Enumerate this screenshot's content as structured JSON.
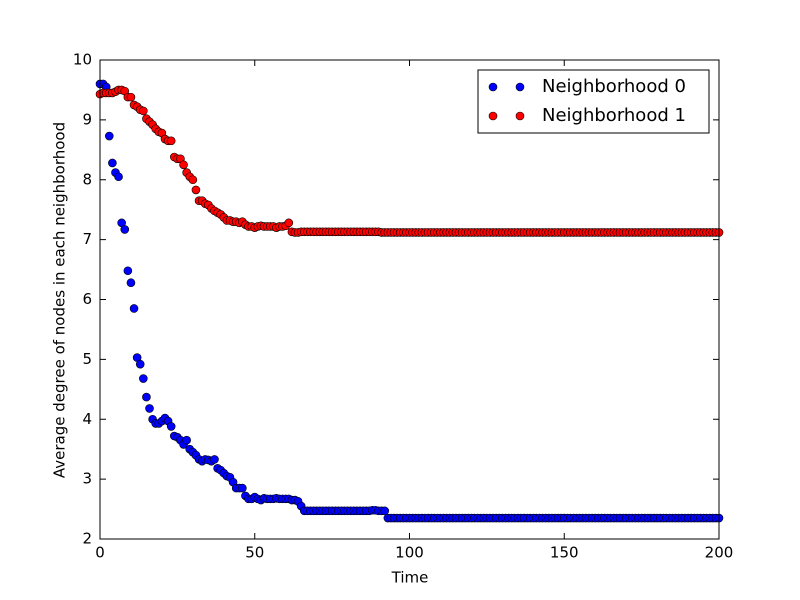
{
  "chart_data": {
    "type": "scatter",
    "x_label": "Time",
    "y_label": "Average degree of nodes in each neighborhood",
    "xlim": [
      0,
      200
    ],
    "xticks": [
      0,
      50,
      100,
      150,
      200
    ],
    "ylim": [
      2,
      10
    ],
    "yticks": [
      2,
      3,
      4,
      5,
      6,
      7,
      8,
      9,
      10
    ],
    "legend": "upper right",
    "x": [
      0,
      1,
      2,
      3,
      4,
      5,
      6,
      7,
      8,
      9,
      10,
      11,
      12,
      13,
      14,
      15,
      16,
      17,
      18,
      19,
      20,
      21,
      22,
      23,
      24,
      25,
      26,
      27,
      28,
      29,
      30,
      31,
      32,
      33,
      34,
      35,
      36,
      37,
      38,
      39,
      40,
      41,
      42,
      43,
      44,
      45,
      46,
      47,
      48,
      49,
      50,
      51,
      52,
      53,
      54,
      55,
      56,
      57,
      58,
      59,
      60,
      61,
      62,
      63,
      64,
      65,
      66,
      67,
      68,
      69,
      70,
      71,
      72,
      73,
      74,
      75,
      76,
      77,
      78,
      79,
      80,
      81,
      82,
      83,
      84,
      85,
      86,
      87,
      88,
      89,
      90,
      91,
      92,
      93,
      94,
      95,
      96,
      97,
      98,
      99,
      100,
      101,
      102,
      103,
      104,
      105,
      106,
      107,
      108,
      109,
      110,
      111,
      112,
      113,
      114,
      115,
      116,
      117,
      118,
      119,
      120,
      121,
      122,
      123,
      124,
      125,
      126,
      127,
      128,
      129,
      130,
      131,
      132,
      133,
      134,
      135,
      136,
      137,
      138,
      139,
      140,
      141,
      142,
      143,
      144,
      145,
      146,
      147,
      148,
      149,
      150,
      151,
      152,
      153,
      154,
      155,
      156,
      157,
      158,
      159,
      160,
      161,
      162,
      163,
      164,
      165,
      166,
      167,
      168,
      169,
      170,
      171,
      172,
      173,
      174,
      175,
      176,
      177,
      178,
      179,
      180,
      181,
      182,
      183,
      184,
      185,
      186,
      187,
      188,
      189,
      190,
      191,
      192,
      193,
      194,
      195,
      196,
      197,
      198,
      199,
      200
    ],
    "series": [
      {
        "name": "Neighborhood 0",
        "color": "#0000ff",
        "values": [
          9.6,
          9.6,
          9.55,
          8.73,
          8.28,
          8.12,
          8.05,
          7.28,
          7.17,
          6.48,
          6.28,
          5.85,
          5.03,
          4.92,
          4.68,
          4.37,
          4.18,
          4.0,
          3.93,
          3.93,
          3.97,
          4.02,
          3.97,
          3.88,
          3.72,
          3.7,
          3.65,
          3.58,
          3.65,
          3.5,
          3.45,
          3.4,
          3.33,
          3.3,
          3.33,
          3.32,
          3.3,
          3.33,
          3.18,
          3.15,
          3.1,
          3.05,
          3.03,
          2.95,
          2.85,
          2.85,
          2.85,
          2.72,
          2.67,
          2.67,
          2.7,
          2.67,
          2.65,
          2.68,
          2.67,
          2.67,
          2.67,
          2.68,
          2.67,
          2.67,
          2.67,
          2.67,
          2.65,
          2.65,
          2.63,
          2.55,
          2.47,
          2.47,
          2.47,
          2.47,
          2.47,
          2.47,
          2.47,
          2.47,
          2.47,
          2.47,
          2.47,
          2.47,
          2.47,
          2.47,
          2.47,
          2.47,
          2.47,
          2.47,
          2.47,
          2.47,
          2.47,
          2.47,
          2.48,
          2.48,
          2.47,
          2.47,
          2.47,
          2.35,
          2.35,
          2.35,
          2.35,
          2.35,
          2.35,
          2.35,
          2.35,
          2.35,
          2.35,
          2.35,
          2.35,
          2.35,
          2.35,
          2.35,
          2.35,
          2.35,
          2.35,
          2.35,
          2.35,
          2.35,
          2.35,
          2.35,
          2.35,
          2.35,
          2.35,
          2.35,
          2.35,
          2.35,
          2.35,
          2.35,
          2.35,
          2.35,
          2.35,
          2.35,
          2.35,
          2.35,
          2.35,
          2.35,
          2.35,
          2.35,
          2.35,
          2.35,
          2.35,
          2.35,
          2.35,
          2.35,
          2.35,
          2.35,
          2.35,
          2.35,
          2.35,
          2.35,
          2.35,
          2.35,
          2.35,
          2.35,
          2.35,
          2.35,
          2.35,
          2.35,
          2.35,
          2.35,
          2.35,
          2.35,
          2.35,
          2.35,
          2.35,
          2.35,
          2.35,
          2.35,
          2.35,
          2.35,
          2.35,
          2.35,
          2.35,
          2.35,
          2.35,
          2.35,
          2.35,
          2.35,
          2.35,
          2.35,
          2.35,
          2.35,
          2.35,
          2.35,
          2.35,
          2.35,
          2.35,
          2.35,
          2.35,
          2.35,
          2.35,
          2.35,
          2.35,
          2.35,
          2.35,
          2.35,
          2.35,
          2.35,
          2.35,
          2.35,
          2.35,
          2.35,
          2.35,
          2.35,
          2.35
        ]
      },
      {
        "name": "Neighborhood 1",
        "color": "#ff0000",
        "values": [
          9.43,
          9.45,
          9.45,
          9.45,
          9.45,
          9.47,
          9.5,
          9.5,
          9.48,
          9.38,
          9.38,
          9.25,
          9.22,
          9.17,
          9.15,
          9.02,
          8.97,
          8.92,
          8.85,
          8.8,
          8.78,
          8.68,
          8.65,
          8.65,
          8.38,
          8.35,
          8.35,
          8.25,
          8.12,
          8.05,
          8.0,
          7.83,
          7.65,
          7.65,
          7.6,
          7.58,
          7.52,
          7.48,
          7.45,
          7.42,
          7.37,
          7.32,
          7.32,
          7.3,
          7.3,
          7.28,
          7.3,
          7.25,
          7.22,
          7.22,
          7.2,
          7.22,
          7.23,
          7.22,
          7.22,
          7.22,
          7.22,
          7.2,
          7.22,
          7.22,
          7.23,
          7.28,
          7.13,
          7.12,
          7.12,
          7.13,
          7.13,
          7.13,
          7.13,
          7.13,
          7.13,
          7.13,
          7.13,
          7.13,
          7.13,
          7.13,
          7.13,
          7.13,
          7.13,
          7.13,
          7.13,
          7.13,
          7.13,
          7.13,
          7.13,
          7.13,
          7.13,
          7.13,
          7.13,
          7.13,
          7.13,
          7.12,
          7.12,
          7.12,
          7.12,
          7.12,
          7.12,
          7.12,
          7.12,
          7.12,
          7.12,
          7.12,
          7.12,
          7.12,
          7.12,
          7.12,
          7.12,
          7.12,
          7.12,
          7.12,
          7.12,
          7.12,
          7.12,
          7.12,
          7.12,
          7.12,
          7.12,
          7.12,
          7.12,
          7.12,
          7.12,
          7.12,
          7.12,
          7.12,
          7.12,
          7.12,
          7.12,
          7.12,
          7.12,
          7.12,
          7.12,
          7.12,
          7.12,
          7.12,
          7.12,
          7.12,
          7.12,
          7.12,
          7.12,
          7.12,
          7.12,
          7.12,
          7.12,
          7.12,
          7.12,
          7.12,
          7.12,
          7.12,
          7.12,
          7.12,
          7.12,
          7.12,
          7.12,
          7.12,
          7.12,
          7.12,
          7.12,
          7.12,
          7.12,
          7.12,
          7.12,
          7.12,
          7.12,
          7.12,
          7.12,
          7.12,
          7.12,
          7.12,
          7.12,
          7.12,
          7.12,
          7.12,
          7.12,
          7.12,
          7.12,
          7.12,
          7.12,
          7.12,
          7.12,
          7.12,
          7.12,
          7.12,
          7.12,
          7.12,
          7.12,
          7.12,
          7.12,
          7.12,
          7.12,
          7.12,
          7.12,
          7.12,
          7.12,
          7.12,
          7.12,
          7.12,
          7.12,
          7.12,
          7.12,
          7.12,
          7.12
        ]
      }
    ]
  }
}
